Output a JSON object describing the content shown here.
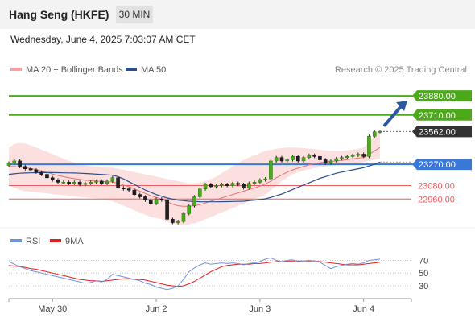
{
  "header": {
    "title": "Hang Seng (HKFE)",
    "timeframe": "30 MIN"
  },
  "datetime": "Wednesday, June 4, 2025 7:03:07 AM CET",
  "colors": {
    "green": "#4caa1a",
    "blue": "#3a78d8",
    "red": "#e86060",
    "dark": "#333333",
    "bband": "#fbd5d5",
    "ma20": "#e57373",
    "ma50": "#2c4f8c",
    "arrow": "#2c5aa0",
    "rsi": "#6f93e0",
    "rsi_ma": "#e02020"
  },
  "chart_data": [
    {
      "type": "candlestick",
      "legend": [
        {
          "label": "MA 20 + Bollinger Bands",
          "color": "#f4a1a1"
        },
        {
          "label": "MA 50",
          "color": "#2c4f8c"
        }
      ],
      "credit": "Research © 2025 Trading Central",
      "ylim": [
        22725,
        24017
      ],
      "levels": [
        {
          "label": "23880.00",
          "value": 23880,
          "style": "green",
          "line": true
        },
        {
          "label": "23710.00",
          "value": 23710,
          "style": "green",
          "line": true
        },
        {
          "label": "23562.00",
          "value": 23562,
          "style": "dark",
          "line": false
        },
        {
          "label": "23270.00",
          "value": 23270,
          "style": "blue",
          "line": true
        },
        {
          "label": "23080.00",
          "value": 23080,
          "style": "red",
          "line": true
        },
        {
          "label": "22960.00",
          "value": 22960,
          "style": "red",
          "line": true
        }
      ],
      "x_ticks": [
        {
          "label": "May 30",
          "index": 8
        },
        {
          "label": "Jun 2",
          "index": 27
        },
        {
          "label": "Jun 3",
          "index": 46
        },
        {
          "label": "Jun 4",
          "index": 65
        }
      ],
      "close": [
        23280,
        23300,
        23250,
        23230,
        23220,
        23200,
        23180,
        23150,
        23130,
        23110,
        23110,
        23100,
        23110,
        23090,
        23100,
        23110,
        23120,
        23100,
        23120,
        23150,
        23060,
        23050,
        23040,
        23000,
        22980,
        22950,
        22920,
        22960,
        22950,
        22780,
        22750,
        22760,
        22830,
        22900,
        22980,
        23050,
        23090,
        23070,
        23080,
        23090,
        23080,
        23100,
        23090,
        23060,
        23100,
        23110,
        23130,
        23140,
        23300,
        23330,
        23300,
        23310,
        23340,
        23300,
        23330,
        23350,
        23340,
        23310,
        23280,
        23300,
        23320,
        23330,
        23340,
        23350,
        23360,
        23340,
        23520,
        23560,
        23562
      ],
      "ma20": [
        23250,
        23250,
        23245,
        23240,
        23232,
        23222,
        23210,
        23197,
        23183,
        23170,
        23160,
        23150,
        23142,
        23135,
        23128,
        23124,
        23120,
        23117,
        23115,
        23113,
        23100,
        23085,
        23070,
        23050,
        23030,
        23010,
        22990,
        22975,
        22960,
        22935,
        22915,
        22900,
        22895,
        22895,
        22900,
        22910,
        22925,
        22940,
        22955,
        22970,
        22985,
        23000,
        23015,
        23030,
        23045,
        23060,
        23075,
        23095,
        23120,
        23150,
        23175,
        23200,
        23220,
        23235,
        23250,
        23265,
        23275,
        23285,
        23290,
        23295,
        23300,
        23305,
        23312,
        23318,
        23325,
        23330,
        23360,
        23390,
        23420
      ],
      "bb_upper": [
        23420,
        23450,
        23460,
        23455,
        23440,
        23420,
        23400,
        23380,
        23360,
        23340,
        23320,
        23300,
        23285,
        23270,
        23260,
        23255,
        23250,
        23245,
        23240,
        23240,
        23230,
        23220,
        23210,
        23200,
        23190,
        23180,
        23170,
        23160,
        23150,
        23140,
        23130,
        23120,
        23110,
        23100,
        23100,
        23110,
        23120,
        23140,
        23160,
        23190,
        23220,
        23250,
        23280,
        23310,
        23330,
        23350,
        23370,
        23390,
        23400,
        23410,
        23415,
        23420,
        23420,
        23418,
        23415,
        23410,
        23405,
        23400,
        23395,
        23390,
        23390,
        23390,
        23395,
        23400,
        23410,
        23420,
        23470,
        23530,
        23580
      ],
      "bb_lower": [
        23080,
        23060,
        23040,
        23030,
        23025,
        23020,
        23015,
        23010,
        23005,
        23000,
        22995,
        22990,
        22985,
        22980,
        22975,
        22970,
        22965,
        22960,
        22950,
        22940,
        22920,
        22900,
        22880,
        22860,
        22840,
        22820,
        22800,
        22790,
        22780,
        22760,
        22740,
        22730,
        22730,
        22735,
        22745,
        22760,
        22780,
        22800,
        22820,
        22840,
        22860,
        22880,
        22900,
        22920,
        22940,
        22960,
        22980,
        23000,
        23040,
        23080,
        23120,
        23150,
        23180,
        23200,
        23215,
        23225,
        23235,
        23245,
        23250,
        23255,
        23260,
        23265,
        23270,
        23275,
        23280,
        23290,
        23300,
        23310,
        23320
      ],
      "ma50": [
        23180,
        23185,
        23190,
        23192,
        23194,
        23195,
        23196,
        23196,
        23196,
        23195,
        23194,
        23193,
        23192,
        23190,
        23188,
        23185,
        23182,
        23179,
        23176,
        23172,
        23160,
        23140,
        23115,
        23090,
        23065,
        23040,
        23020,
        23000,
        22985,
        22970,
        22960,
        22950,
        22945,
        22940,
        22938,
        22936,
        22935,
        22935,
        22935,
        22936,
        22937,
        22938,
        22939,
        22940,
        22945,
        22950,
        22955,
        22962,
        22975,
        22990,
        23005,
        23025,
        23045,
        23065,
        23085,
        23105,
        23125,
        23145,
        23160,
        23175,
        23190,
        23200,
        23210,
        23220,
        23230,
        23240,
        23255,
        23270,
        23290
      ]
    },
    {
      "type": "line",
      "legend": [
        {
          "label": "RSI",
          "color": "#6f93e0"
        },
        {
          "label": "9MA",
          "color": "#e02020"
        }
      ],
      "ylim": [
        16,
        82
      ],
      "y_ticks": [
        70,
        50,
        30
      ],
      "rsi": [
        68,
        64,
        60,
        57,
        54,
        52,
        50,
        48,
        46,
        44,
        42,
        40,
        38,
        36,
        34,
        35,
        38,
        36,
        40,
        48,
        46,
        44,
        42,
        40,
        38,
        34,
        32,
        28,
        26,
        24,
        26,
        30,
        40,
        52,
        58,
        63,
        66,
        64,
        65,
        66,
        65,
        66,
        65,
        63,
        65,
        66,
        68,
        72,
        74,
        70,
        68,
        70,
        71,
        68,
        69,
        70,
        69,
        67,
        62,
        57,
        60,
        62,
        64,
        65,
        64,
        66,
        70,
        71,
        72
      ],
      "rsi_ma": [
        62,
        61,
        60,
        59,
        57,
        56,
        54,
        52,
        50,
        48,
        46,
        44,
        42,
        40,
        39,
        38,
        38,
        37,
        38,
        39,
        40,
        41,
        41,
        40,
        40,
        39,
        37,
        35,
        33,
        31,
        30,
        29,
        30,
        33,
        37,
        42,
        47,
        52,
        56,
        60,
        62,
        63,
        64,
        64,
        64,
        65,
        65,
        66,
        67,
        68,
        68,
        69,
        69,
        69,
        69,
        69,
        69,
        68,
        67,
        66,
        65,
        64,
        63,
        63,
        63,
        64,
        65,
        66,
        67
      ]
    }
  ]
}
